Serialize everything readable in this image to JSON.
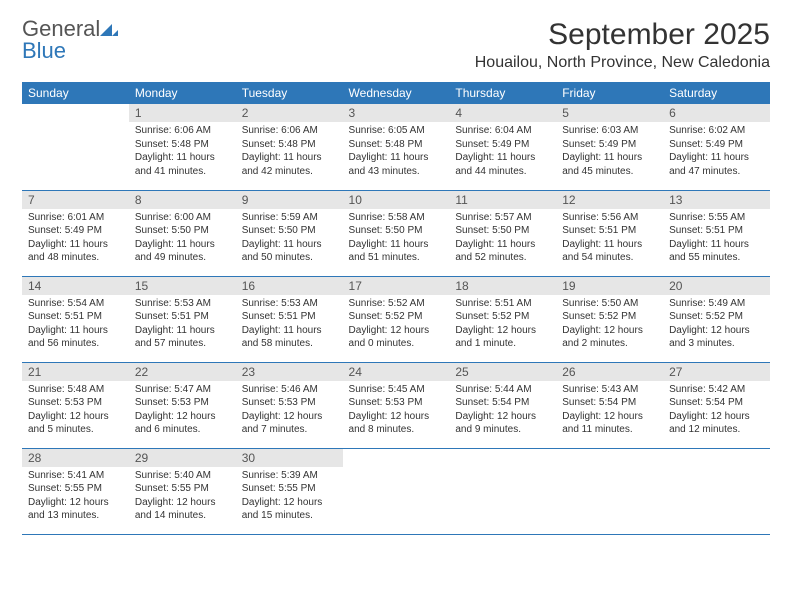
{
  "brand": {
    "name1": "General",
    "name2": "Blue",
    "color1": "#555555",
    "color2": "#2e77b8"
  },
  "title": "September 2025",
  "location": "Houailou, North Province, New Caledonia",
  "colors": {
    "header_bg": "#2e77b8",
    "header_text": "#ffffff",
    "daynum_bg": "#e6e6e6",
    "daynum_text": "#555555",
    "border": "#2e77b8",
    "body_text": "#333333",
    "page_bg": "#ffffff"
  },
  "typography": {
    "title_fontsize": 30,
    "location_fontsize": 16,
    "th_fontsize": 12,
    "cell_fontsize": 10
  },
  "layout": {
    "cols": 7,
    "rows": 5,
    "leading_blanks": 1,
    "trailing_blanks": 4
  },
  "weekdays": [
    "Sunday",
    "Monday",
    "Tuesday",
    "Wednesday",
    "Thursday",
    "Friday",
    "Saturday"
  ],
  "days": [
    {
      "n": "1",
      "sunrise": "6:06 AM",
      "sunset": "5:48 PM",
      "daylight": "11 hours and 41 minutes."
    },
    {
      "n": "2",
      "sunrise": "6:06 AM",
      "sunset": "5:48 PM",
      "daylight": "11 hours and 42 minutes."
    },
    {
      "n": "3",
      "sunrise": "6:05 AM",
      "sunset": "5:48 PM",
      "daylight": "11 hours and 43 minutes."
    },
    {
      "n": "4",
      "sunrise": "6:04 AM",
      "sunset": "5:49 PM",
      "daylight": "11 hours and 44 minutes."
    },
    {
      "n": "5",
      "sunrise": "6:03 AM",
      "sunset": "5:49 PM",
      "daylight": "11 hours and 45 minutes."
    },
    {
      "n": "6",
      "sunrise": "6:02 AM",
      "sunset": "5:49 PM",
      "daylight": "11 hours and 47 minutes."
    },
    {
      "n": "7",
      "sunrise": "6:01 AM",
      "sunset": "5:49 PM",
      "daylight": "11 hours and 48 minutes."
    },
    {
      "n": "8",
      "sunrise": "6:00 AM",
      "sunset": "5:50 PM",
      "daylight": "11 hours and 49 minutes."
    },
    {
      "n": "9",
      "sunrise": "5:59 AM",
      "sunset": "5:50 PM",
      "daylight": "11 hours and 50 minutes."
    },
    {
      "n": "10",
      "sunrise": "5:58 AM",
      "sunset": "5:50 PM",
      "daylight": "11 hours and 51 minutes."
    },
    {
      "n": "11",
      "sunrise": "5:57 AM",
      "sunset": "5:50 PM",
      "daylight": "11 hours and 52 minutes."
    },
    {
      "n": "12",
      "sunrise": "5:56 AM",
      "sunset": "5:51 PM",
      "daylight": "11 hours and 54 minutes."
    },
    {
      "n": "13",
      "sunrise": "5:55 AM",
      "sunset": "5:51 PM",
      "daylight": "11 hours and 55 minutes."
    },
    {
      "n": "14",
      "sunrise": "5:54 AM",
      "sunset": "5:51 PM",
      "daylight": "11 hours and 56 minutes."
    },
    {
      "n": "15",
      "sunrise": "5:53 AM",
      "sunset": "5:51 PM",
      "daylight": "11 hours and 57 minutes."
    },
    {
      "n": "16",
      "sunrise": "5:53 AM",
      "sunset": "5:51 PM",
      "daylight": "11 hours and 58 minutes."
    },
    {
      "n": "17",
      "sunrise": "5:52 AM",
      "sunset": "5:52 PM",
      "daylight": "12 hours and 0 minutes."
    },
    {
      "n": "18",
      "sunrise": "5:51 AM",
      "sunset": "5:52 PM",
      "daylight": "12 hours and 1 minute."
    },
    {
      "n": "19",
      "sunrise": "5:50 AM",
      "sunset": "5:52 PM",
      "daylight": "12 hours and 2 minutes."
    },
    {
      "n": "20",
      "sunrise": "5:49 AM",
      "sunset": "5:52 PM",
      "daylight": "12 hours and 3 minutes."
    },
    {
      "n": "21",
      "sunrise": "5:48 AM",
      "sunset": "5:53 PM",
      "daylight": "12 hours and 5 minutes."
    },
    {
      "n": "22",
      "sunrise": "5:47 AM",
      "sunset": "5:53 PM",
      "daylight": "12 hours and 6 minutes."
    },
    {
      "n": "23",
      "sunrise": "5:46 AM",
      "sunset": "5:53 PM",
      "daylight": "12 hours and 7 minutes."
    },
    {
      "n": "24",
      "sunrise": "5:45 AM",
      "sunset": "5:53 PM",
      "daylight": "12 hours and 8 minutes."
    },
    {
      "n": "25",
      "sunrise": "5:44 AM",
      "sunset": "5:54 PM",
      "daylight": "12 hours and 9 minutes."
    },
    {
      "n": "26",
      "sunrise": "5:43 AM",
      "sunset": "5:54 PM",
      "daylight": "12 hours and 11 minutes."
    },
    {
      "n": "27",
      "sunrise": "5:42 AM",
      "sunset": "5:54 PM",
      "daylight": "12 hours and 12 minutes."
    },
    {
      "n": "28",
      "sunrise": "5:41 AM",
      "sunset": "5:55 PM",
      "daylight": "12 hours and 13 minutes."
    },
    {
      "n": "29",
      "sunrise": "5:40 AM",
      "sunset": "5:55 PM",
      "daylight": "12 hours and 14 minutes."
    },
    {
      "n": "30",
      "sunrise": "5:39 AM",
      "sunset": "5:55 PM",
      "daylight": "12 hours and 15 minutes."
    }
  ],
  "labels": {
    "sunrise": "Sunrise: ",
    "sunset": "Sunset: ",
    "daylight": "Daylight: "
  }
}
